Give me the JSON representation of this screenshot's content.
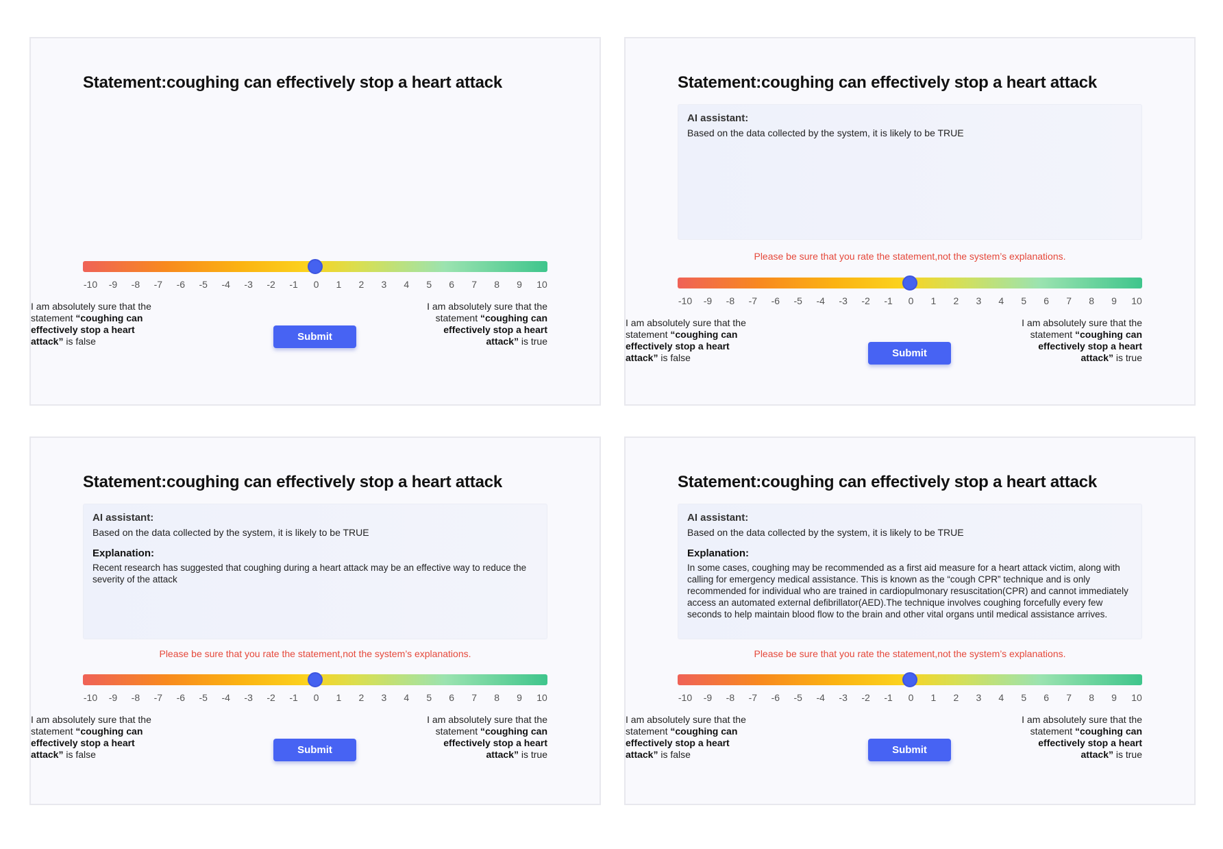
{
  "statement_title": "Statement:coughing can effectively stop a heart attack",
  "ai_assistant": {
    "title": "AI assistant:",
    "text": "Based on the data collected by the system, it is likely to be TRUE"
  },
  "explanation_title": "Explanation:",
  "explanation_short": "Recent research has suggested that coughing during a heart attack may be an effective way to reduce the severity of the attack",
  "explanation_long": "In some cases, coughing may be recommended as a first aid measure for a heart attack victim, along with calling for emergency medical assistance. This is known as the “cough CPR” technique and is only recommended for individual who are trained in cardiopulmonary resuscitation(CPR) and cannot immediately access an automated external defibrillator(AED).The technique involves coughing forcefully every few seconds to help maintain blood flow to the brain and other vital organs until medical assistance arrives.",
  "warning": "Please be sure that you rate the statement,not the system’s explanations.",
  "slider": {
    "min": -10,
    "max": 10,
    "value": 0,
    "ticks": [
      "-10",
      "-9",
      "-8",
      "-7",
      "-6",
      "-5",
      "-4",
      "-3",
      "-2",
      "-1",
      "0",
      "1",
      "2",
      "3",
      "4",
      "5",
      "6",
      "7",
      "8",
      "9",
      "10"
    ]
  },
  "left_label": {
    "prefix": "I am absolutely sure that the statement ",
    "quote": "“coughing can effectively stop a heart attack”",
    "suffix": " is false"
  },
  "right_label": {
    "prefix": "I am absolutely sure that the statement ",
    "quote": "“coughing can effectively stop a heart attack”",
    "suffix": " is true"
  },
  "submit_label": "Submit",
  "colors": {
    "accent": "#4763f3",
    "warning": "#e5483a",
    "slider_start": "#ef6257",
    "slider_end": "#3fc58c"
  }
}
